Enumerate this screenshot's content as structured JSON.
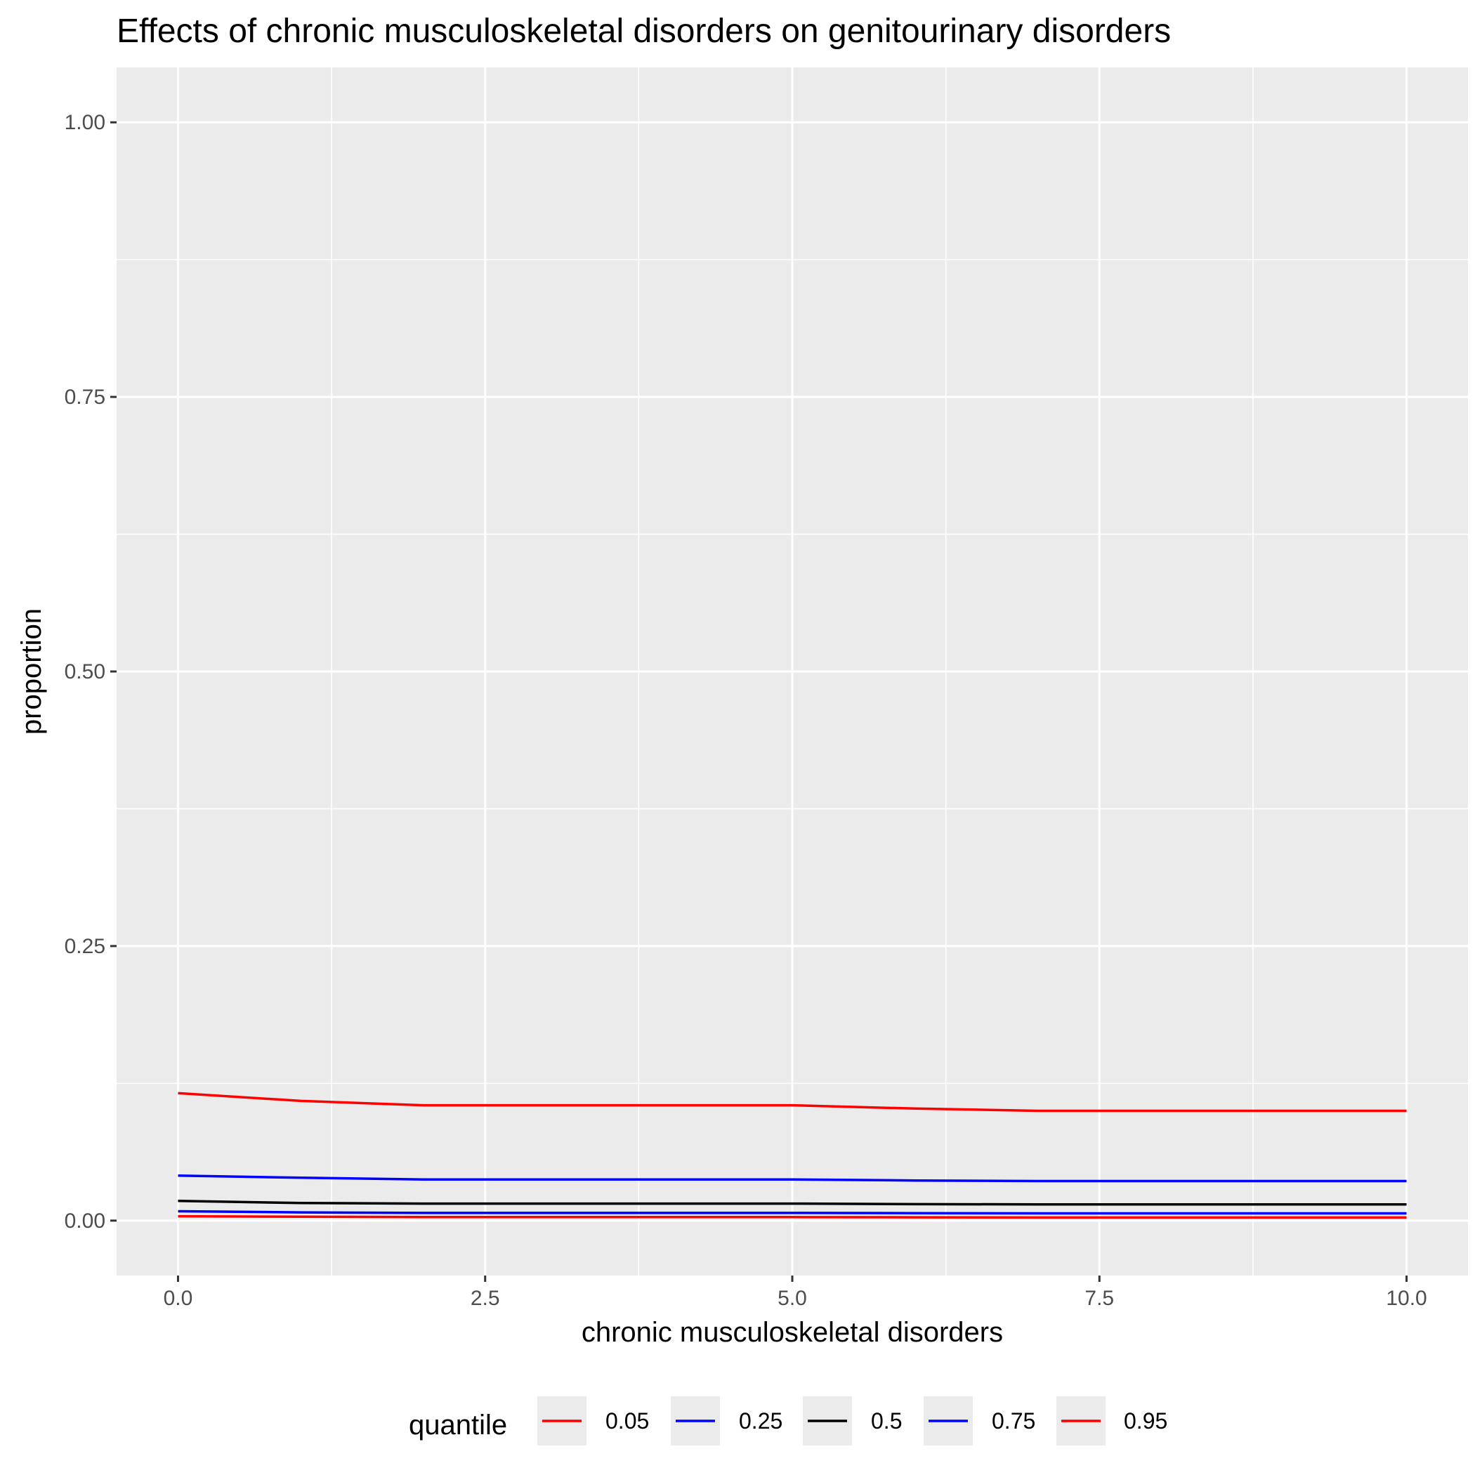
{
  "chart_data": {
    "type": "line",
    "title": "Effects of chronic musculoskeletal disorders on genitourinary disorders",
    "xlabel": "chronic musculoskeletal disorders",
    "ylabel": "proportion",
    "xlim": [
      -0.5,
      10.5
    ],
    "ylim": [
      -0.05,
      1.05
    ],
    "x_ticks": [
      0,
      2.5,
      5,
      7.5,
      10
    ],
    "x_tick_labels": [
      "0.0",
      "2.5",
      "5.0",
      "7.5",
      "10.0"
    ],
    "y_ticks": [
      0,
      0.25,
      0.5,
      0.75,
      1
    ],
    "y_tick_labels": [
      "0.00",
      "0.25",
      "0.50",
      "0.75",
      "1.00"
    ],
    "grid": true,
    "background": "#ebebeb",
    "legend": {
      "title": "quantile",
      "position": "bottom"
    },
    "x": [
      0,
      1,
      2,
      3,
      4,
      5,
      6,
      7,
      8,
      9,
      10
    ],
    "series": [
      {
        "name": "0.05",
        "color": "#ff0000",
        "values": [
          0.004,
          0.0035,
          0.0032,
          0.0032,
          0.0032,
          0.0032,
          0.003,
          0.0028,
          0.0028,
          0.0028,
          0.0028
        ]
      },
      {
        "name": "0.25",
        "color": "#0000ff",
        "values": [
          0.0085,
          0.0075,
          0.007,
          0.007,
          0.007,
          0.007,
          0.0068,
          0.0066,
          0.0066,
          0.0066,
          0.0066
        ]
      },
      {
        "name": "0.5",
        "color": "#000000",
        "values": [
          0.018,
          0.016,
          0.0155,
          0.0155,
          0.0155,
          0.0155,
          0.015,
          0.0148,
          0.0148,
          0.0148,
          0.0148
        ]
      },
      {
        "name": "0.75",
        "color": "#0000ff",
        "values": [
          0.041,
          0.039,
          0.0375,
          0.0375,
          0.0375,
          0.0375,
          0.0365,
          0.036,
          0.036,
          0.036,
          0.036
        ]
      },
      {
        "name": "0.95",
        "color": "#ff0000",
        "values": [
          0.116,
          0.109,
          0.105,
          0.105,
          0.105,
          0.105,
          0.102,
          0.1,
          0.1,
          0.1,
          0.1
        ]
      }
    ]
  }
}
